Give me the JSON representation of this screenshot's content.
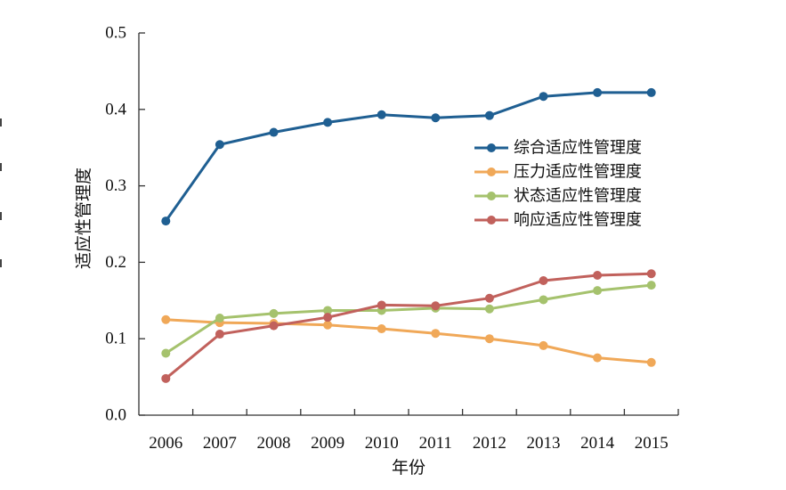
{
  "chart_data": {
    "type": "line",
    "xlabel": "年份",
    "ylabel": "适应性管理度",
    "ylim": [
      0,
      0.5
    ],
    "yticks": [
      "0.0",
      "0.1",
      "0.2",
      "0.3",
      "0.4",
      "0.5"
    ],
    "categories": [
      "2006",
      "2007",
      "2008",
      "2009",
      "2010",
      "2011",
      "2012",
      "2013",
      "2014",
      "2015"
    ],
    "grid": false,
    "legend_position": "right",
    "series": [
      {
        "name": "综合适应性管理度",
        "color": "#1f5f92",
        "values": [
          0.254,
          0.354,
          0.37,
          0.383,
          0.393,
          0.389,
          0.392,
          0.417,
          0.422,
          0.422
        ]
      },
      {
        "name": "压力适应性管理度",
        "color": "#f0a858",
        "values": [
          0.125,
          0.121,
          0.12,
          0.118,
          0.113,
          0.107,
          0.1,
          0.091,
          0.075,
          0.069
        ]
      },
      {
        "name": "状态适应性管理度",
        "color": "#a5c26d",
        "values": [
          0.081,
          0.127,
          0.133,
          0.137,
          0.137,
          0.14,
          0.139,
          0.151,
          0.163,
          0.17
        ]
      },
      {
        "name": "响应适应性管理度",
        "color": "#c1615c",
        "values": [
          0.048,
          0.106,
          0.117,
          0.128,
          0.144,
          0.143,
          0.153,
          0.176,
          0.183,
          0.185
        ]
      }
    ]
  }
}
